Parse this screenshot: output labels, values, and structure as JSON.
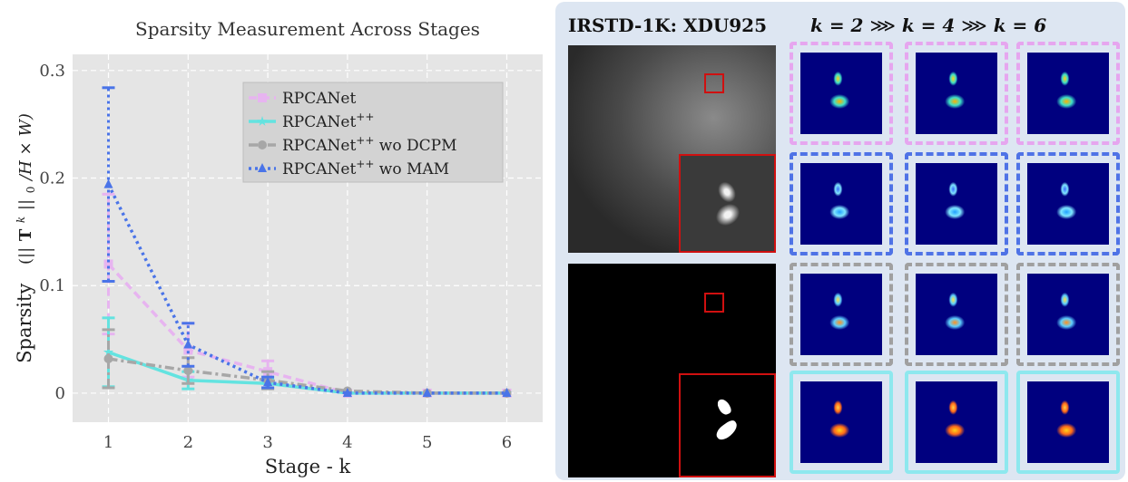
{
  "chart_data": {
    "type": "line",
    "title": "Sparsity Measurement Across Stages",
    "xlabel": "Stage - k",
    "ylabel": "Sparsity  (||T^k||0/H×W)",
    "ylabel_parts": {
      "main": "Sparsity",
      "open": "(||",
      "bold": "T",
      "sup": "k",
      "mid": "||",
      "sub": "0",
      "tail": "/H × W)"
    },
    "xlim": [
      0.55,
      6.45
    ],
    "ylim": [
      -0.027,
      0.315
    ],
    "x": [
      1,
      2,
      3,
      4,
      5,
      6
    ],
    "x_ticks": [
      "1",
      "2",
      "3",
      "4",
      "5",
      "6"
    ],
    "y_ticks": [
      {
        "value": 0,
        "label": "0"
      },
      {
        "value": 0.1,
        "label": "0.1"
      },
      {
        "value": 0.2,
        "label": "0.2"
      },
      {
        "value": 0.3,
        "label": "0.3"
      }
    ],
    "grid": true,
    "legend_position": "top-right",
    "series": [
      {
        "name": "RPCANet",
        "color": "#e7b4f0",
        "dash": "9,5",
        "marker": "square",
        "values": [
          0.12,
          0.04,
          0.02,
          0.0,
          0.0,
          0.0
        ],
        "err": [
          0.065,
          0.025,
          0.01,
          0.002,
          0.001,
          0.0
        ]
      },
      {
        "name": "RPCANet++",
        "color": "#63e3e0",
        "dash": "",
        "marker": "star",
        "values": [
          0.038,
          0.012,
          0.009,
          0.0,
          0.0,
          0.0
        ],
        "err": [
          0.032,
          0.008,
          0.004,
          0.001,
          0.0,
          0.0
        ]
      },
      {
        "name": "RPCANet++ wo DCPM",
        "color": "#a7a7a7",
        "dash": "10,4,3,4",
        "marker": "circle",
        "values": [
          0.032,
          0.021,
          0.012,
          0.002,
          0.0,
          0.0
        ],
        "err": [
          0.027,
          0.012,
          0.008,
          0.003,
          0.0,
          0.0
        ]
      },
      {
        "name": "RPCANet++ wo MAM",
        "color": "#4a74e8",
        "dash": "3,4",
        "marker": "triangle",
        "values": [
          0.194,
          0.045,
          0.01,
          0.0,
          0.0,
          0.0
        ],
        "err": [
          0.09,
          0.02,
          0.005,
          0.001,
          0.0,
          0.0
        ]
      }
    ]
  },
  "panel": {
    "title": "IRSTD-1K: XDU925",
    "stages": [
      "k = 2",
      "k = 4",
      "k = 6"
    ],
    "arrows": "⋙",
    "rows": [
      {
        "method": "RPCANet",
        "frame_color": "#e6a6ef",
        "frame_style": "dashed"
      },
      {
        "method": "RPCANet++ wo MAM",
        "frame_color": "#4f73e6",
        "frame_style": "dashed"
      },
      {
        "method": "RPCANet++ wo DCPM",
        "frame_color": "#a0a0a0",
        "frame_style": "dashed"
      },
      {
        "method": "RPCANet++",
        "frame_color": "#8ee8ee",
        "frame_style": "solid"
      }
    ]
  }
}
